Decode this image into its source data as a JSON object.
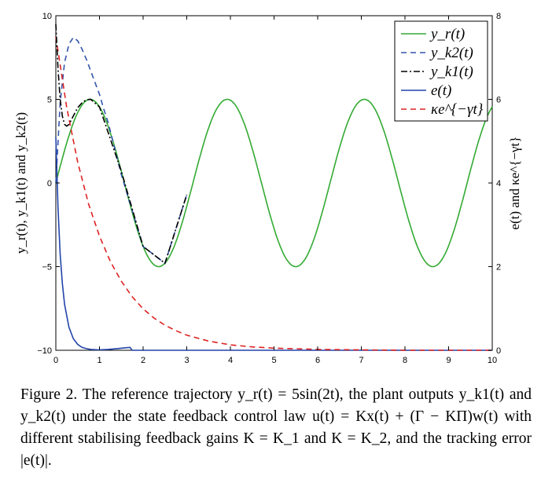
{
  "chart_data": {
    "type": "line",
    "title": "",
    "xlabel": "",
    "ylabel_left": "y_r(t), y_k1(t) and y_k2(t)",
    "ylabel_right": "e(t) and κe^{−γt}",
    "xlim": [
      0,
      10
    ],
    "ylim_left": [
      -10,
      10
    ],
    "ylim_right": [
      0,
      8
    ],
    "x_ticks": [
      "0",
      "1",
      "2",
      "3",
      "4",
      "5",
      "6",
      "7",
      "8",
      "9",
      "10"
    ],
    "y_left_ticks": [
      "10",
      "5",
      "0",
      "−5",
      "−10"
    ],
    "y_right_ticks": [
      "8",
      "6",
      "4",
      "2",
      "0"
    ],
    "grid": false,
    "legend_position": "top-right",
    "series": [
      {
        "name": "y_r(t)",
        "axis": "left",
        "color": "#33aa33",
        "style": "solid",
        "x": [
          0,
          0.39,
          0.785,
          1.18,
          1.57,
          1.96,
          2.36,
          2.75,
          3.14,
          3.53,
          3.93,
          4.32,
          4.71,
          5.1,
          5.5,
          5.89,
          6.28,
          6.67,
          7.07,
          7.46,
          7.85,
          8.24,
          8.64,
          9.03,
          9.42,
          9.81,
          10
        ],
        "y": [
          0,
          3.53,
          5,
          3.53,
          0,
          -3.53,
          -5,
          -3.53,
          0,
          3.53,
          5,
          3.53,
          0,
          -3.53,
          -5,
          -3.53,
          0,
          3.53,
          5,
          3.53,
          0,
          -3.53,
          -5,
          -3.53,
          0,
          3.53,
          4.56
        ]
      },
      {
        "name": "y_k2(t)",
        "axis": "left",
        "color": "#3355aa",
        "style": "dashed",
        "x": [
          0,
          0.1,
          0.2,
          0.3,
          0.4,
          0.5,
          0.6,
          0.7,
          0.8,
          0.9,
          1.0,
          1.1,
          1.2,
          1.5,
          2.0,
          2.5,
          3.0
        ],
        "y": [
          0,
          4.8,
          7.2,
          8.3,
          8.7,
          8.5,
          8.0,
          7.4,
          6.7,
          6.0,
          5.3,
          4.4,
          3.6,
          0.5,
          -3.8,
          -4.8,
          -0.7
        ]
      },
      {
        "name": "y_k1(t)",
        "axis": "left",
        "color": "#000000",
        "style": "dashdot",
        "x": [
          0,
          0.05,
          0.1,
          0.15,
          0.2,
          0.25,
          0.3,
          0.4,
          0.5,
          0.6,
          0.7,
          0.8,
          1.0,
          1.5,
          2.0,
          2.5,
          3.0
        ],
        "y": [
          9.5,
          6.8,
          5.0,
          4.0,
          3.5,
          3.4,
          3.5,
          4.0,
          4.5,
          4.8,
          4.97,
          5.0,
          4.55,
          0.7,
          -3.8,
          -4.8,
          -0.7
        ]
      },
      {
        "name": "e(t)",
        "axis": "right",
        "color": "#2244aa",
        "style": "solid",
        "x": [
          0,
          0.05,
          0.1,
          0.15,
          0.2,
          0.3,
          0.4,
          0.5,
          0.6,
          0.7,
          0.8,
          1.0,
          1.2,
          1.4,
          1.6,
          1.7,
          1.75,
          10
        ],
        "y": [
          5.1,
          3.4,
          2.3,
          1.6,
          1.1,
          0.55,
          0.28,
          0.14,
          0.07,
          0.04,
          0.02,
          0.01,
          0.02,
          0.04,
          0.06,
          0.07,
          0.0,
          0.0
        ]
      },
      {
        "name": "κe^{−γt}",
        "axis": "right",
        "color": "#dd2222",
        "style": "dashed",
        "x": [
          0,
          0.25,
          0.5,
          0.75,
          1.0,
          1.25,
          1.5,
          1.75,
          2.0,
          2.25,
          2.5,
          2.75,
          3.0,
          3.5,
          4.0,
          4.5,
          5.0,
          6.0,
          7.0,
          8.0,
          9.0,
          10.0
        ],
        "y": [
          7.5,
          5.8,
          4.5,
          3.5,
          2.73,
          2.12,
          1.65,
          1.28,
          0.99,
          0.77,
          0.6,
          0.47,
          0.36,
          0.22,
          0.13,
          0.08,
          0.05,
          0.02,
          0.01,
          0.0,
          0.0,
          0.0
        ]
      }
    ]
  },
  "caption": {
    "text": "Figure 2.   The reference trajectory y_r(t) = 5sin(2t), the plant outputs y_k1(t) and y_k2(t) under the state feedback control law u(t) = Kx(t) + (Γ − KΠ)w(t) with different stabilising feedback gains K = K_1 and K = K_2, and the tracking error |e(t)|."
  }
}
